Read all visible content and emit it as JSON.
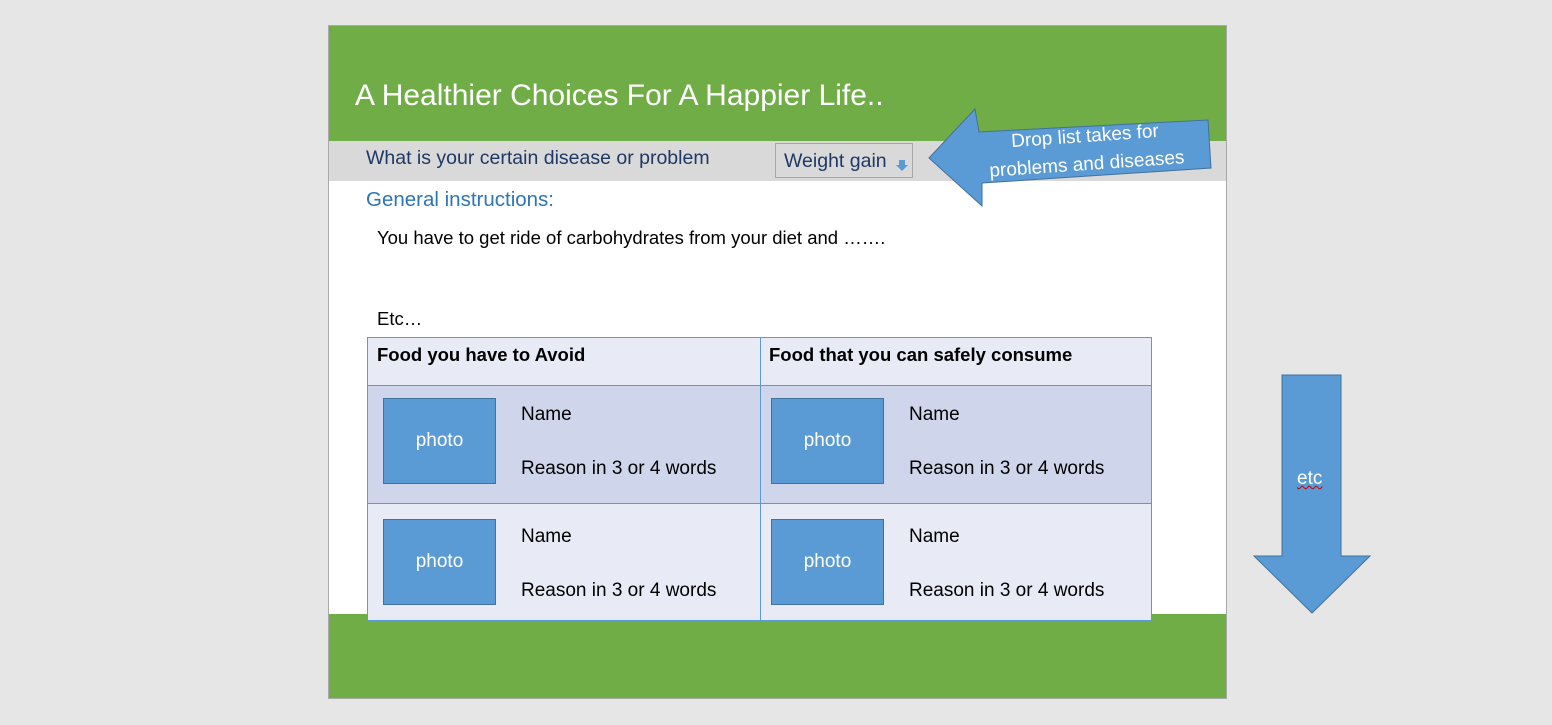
{
  "title": "A Healthier Choices For A Happier Life..",
  "question": {
    "label": "What is your certain disease or problem",
    "selected": "Weight gain"
  },
  "callout_text": "Drop list takes for problems and diseases",
  "general": {
    "heading": "General instructions:",
    "text": "You have to get ride of carbohydrates from your diet  and …….",
    "etc": "Etc…"
  },
  "table": {
    "headers": [
      "Food you have to Avoid",
      "Food that you can safely consume"
    ],
    "rows": [
      [
        {
          "photo": "photo",
          "name": "Name",
          "reason": "Reason in 3 or 4 words"
        },
        {
          "photo": "photo",
          "name": "Name",
          "reason": "Reason in 3 or 4 words"
        }
      ],
      [
        {
          "photo": "photo",
          "name": "Name",
          "reason": "Reason in 3 or 4 words"
        },
        {
          "photo": "photo",
          "name": "Name",
          "reason": "Reason in 3 or 4 words"
        }
      ]
    ]
  },
  "down_arrow_label": "etc",
  "colors": {
    "header_green": "#70ad47",
    "question_bar": "#d9d9d9",
    "arrow_blue": "#5b9bd5",
    "heading_blue": "#2e75b6",
    "label_navy": "#1f3864"
  }
}
